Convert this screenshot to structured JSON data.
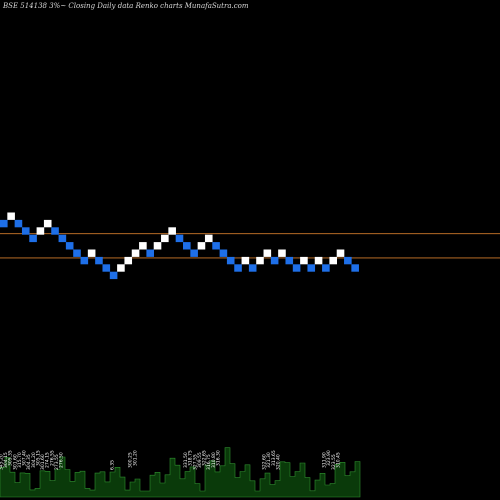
{
  "title": "BSE 514138  3%~  Closing Daily data  Renko  charts MunafaSutra.com",
  "colors": {
    "background": "#000000",
    "up_brick": "#ffffff",
    "down_brick": "#1e6fe8",
    "reference_line": "#d07a2a",
    "volume_fill": "#0a3a0a",
    "volume_stroke": "#2f8f2f"
  },
  "chart_data": {
    "type": "renko",
    "title": "BSE 514138  3%~  Closing Daily data  Renko  charts MunafaSutra.com",
    "brick_size_pct": 3,
    "directions": [
      "down",
      "up",
      "down",
      "down",
      "down",
      "up",
      "up",
      "down",
      "down",
      "down",
      "down",
      "down",
      "up",
      "down",
      "down",
      "down",
      "up",
      "up",
      "up",
      "up",
      "down",
      "up",
      "up",
      "up",
      "down",
      "down",
      "down",
      "up",
      "up",
      "down",
      "down",
      "down",
      "down",
      "up",
      "down",
      "up",
      "up",
      "down",
      "up",
      "down",
      "down",
      "up",
      "down",
      "up",
      "down",
      "up",
      "up",
      "down",
      "down"
    ],
    "levels": [
      8,
      9,
      8,
      7,
      6,
      7,
      8,
      7,
      6,
      5,
      4,
      3,
      4,
      3,
      2,
      1,
      2,
      3,
      4,
      5,
      4,
      5,
      6,
      7,
      6,
      5,
      4,
      5,
      6,
      5,
      4,
      3,
      2,
      3,
      2,
      3,
      4,
      3,
      4,
      3,
      2,
      3,
      2,
      3,
      2,
      3,
      4,
      3,
      2
    ],
    "reference_levels": [
      6.5,
      3.5
    ],
    "volume_labels": [
      "345.20",
      "304.15",
      "305.35",
      "301.60",
      "315.70",
      "307.40",
      "304.35",
      "304.20",
      "305.15",
      "301.60",
      "274.15",
      "276.55",
      "273.55",
      "276.50",
      "",
      "",
      "",
      "",
      "",
      "",
      "",
      "",
      "",
      "",
      "6.35",
      "",
      "",
      "",
      "300.25",
      "301.20",
      "",
      "",
      "",
      "",
      "",
      "",
      "",
      "",
      "",
      "",
      "331.50",
      "318.75",
      "327.55",
      "309.55",
      "322.65",
      "316.75",
      "310.80",
      "316.30",
      "",
      "",
      "",
      "",
      "",
      "",
      "",
      "",
      "",
      "322.60",
      "321.30",
      "313.65",
      "320.40",
      "",
      "",
      "",
      "",
      "",
      "",
      "",
      "",
      "",
      "311.90",
      "323.90",
      "323.55",
      "310.45",
      "",
      "",
      "",
      ""
    ]
  }
}
